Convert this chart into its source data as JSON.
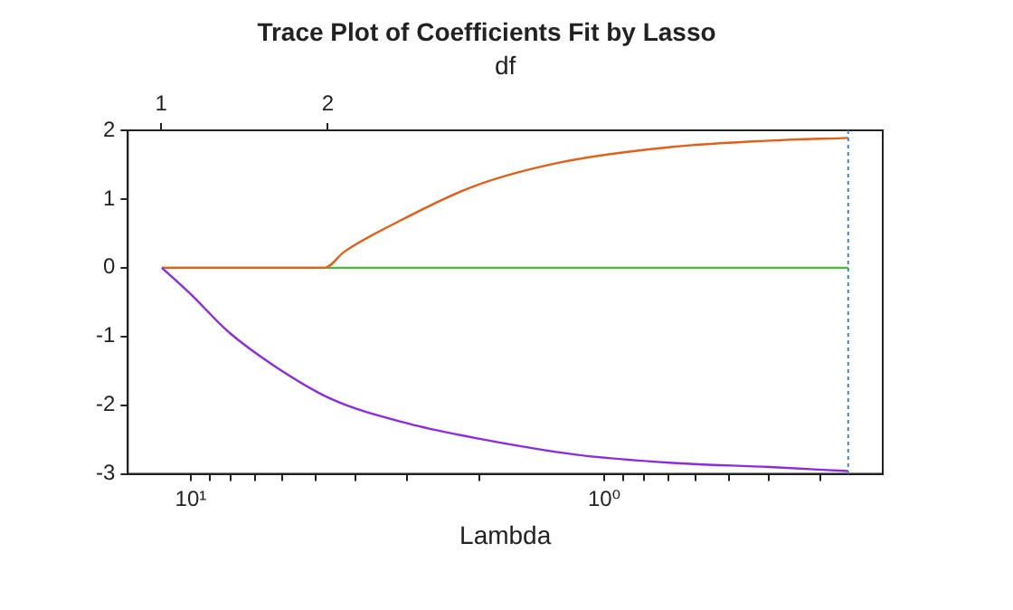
{
  "chart_data": {
    "type": "line",
    "title": "Trace Plot of Coefficients Fit by Lasso",
    "xlabel": "Lambda",
    "x2label": "df",
    "xlim": [
      14.2,
      0.212
    ],
    "xticks": [
      {
        "value": 10,
        "label": "10¹"
      },
      {
        "value": 9,
        "label": null
      },
      {
        "value": 8,
        "label": null
      },
      {
        "value": 7,
        "label": null
      },
      {
        "value": 6,
        "label": null
      },
      {
        "value": 5,
        "label": null
      },
      {
        "value": 4,
        "label": null
      },
      {
        "value": 3,
        "label": null
      },
      {
        "value": 2,
        "label": null
      },
      {
        "value": 1,
        "label": "10⁰"
      },
      {
        "value": 0.9,
        "label": null
      },
      {
        "value": 0.8,
        "label": null
      },
      {
        "value": 0.7,
        "label": null
      },
      {
        "value": 0.6,
        "label": null
      },
      {
        "value": 0.5,
        "label": null
      },
      {
        "value": 0.4,
        "label": null
      },
      {
        "value": 0.3,
        "label": null
      }
    ],
    "x2lim": [
      0.8,
      5.33
    ],
    "x2ticks": [
      1,
      2
    ],
    "ylim": [
      -3,
      2
    ],
    "yticks": [
      -3,
      -2,
      -1,
      0,
      1,
      2
    ],
    "log": "x",
    "grid": false,
    "legend": false,
    "marker": "none",
    "line_style": "solid",
    "series": [
      {
        "color": "#8a2be2",
        "x": [
          11.75,
          10.06,
          8.12,
          6.31,
          4.57,
          2.97,
          2.0,
          1.17,
          0.682,
          0.398,
          0.257
        ],
        "values": [
          0,
          -0.37,
          -0.93,
          -1.42,
          -1.91,
          -2.27,
          -2.49,
          -2.72,
          -2.84,
          -2.9,
          -2.96
        ]
      },
      {
        "color": "#e0601a",
        "x": [
          11.75,
          4.74,
          4.26,
          3.2,
          2.08,
          1.26,
          0.682,
          0.398,
          0.257
        ],
        "values": [
          0,
          0,
          0.23,
          0.65,
          1.18,
          1.54,
          1.76,
          1.85,
          1.89
        ]
      },
      {
        "color": "#4cbb3c",
        "x": [
          11.75,
          0.257
        ],
        "values": [
          0,
          0
        ]
      }
    ],
    "ref_lines": [
      {
        "axis": "x",
        "value": 0.257,
        "color": "#3b8bd0",
        "line_style": "dotted"
      }
    ]
  }
}
